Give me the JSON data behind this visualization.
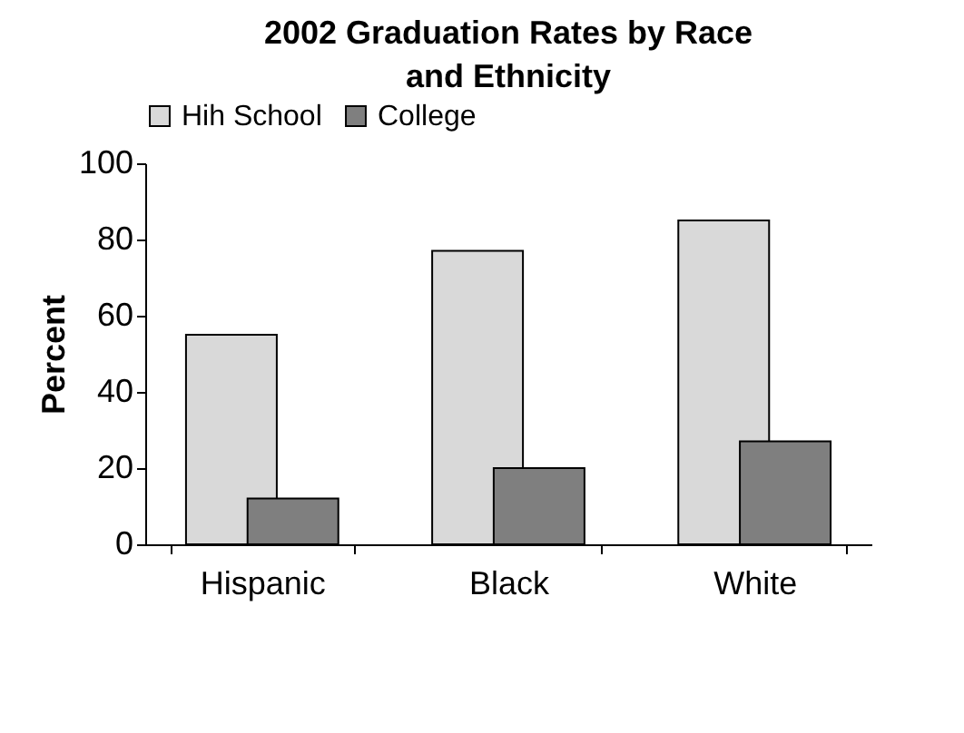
{
  "chart_data": {
    "type": "bar",
    "title": "2002 Graduation Rates by Race and Ethnicity",
    "categories": [
      "Hispanic",
      "Black",
      "White"
    ],
    "series": [
      {
        "name": "Hih School",
        "color": "#d9d9d9",
        "values": [
          55,
          77,
          85
        ]
      },
      {
        "name": "College",
        "color": "#7f7f7f",
        "values": [
          12,
          20,
          27
        ]
      }
    ],
    "ylabel": "Percent",
    "ylim": [
      0,
      100
    ],
    "yticks": [
      0,
      20,
      40,
      60,
      80,
      100
    ],
    "grid": false,
    "legend": "top"
  }
}
